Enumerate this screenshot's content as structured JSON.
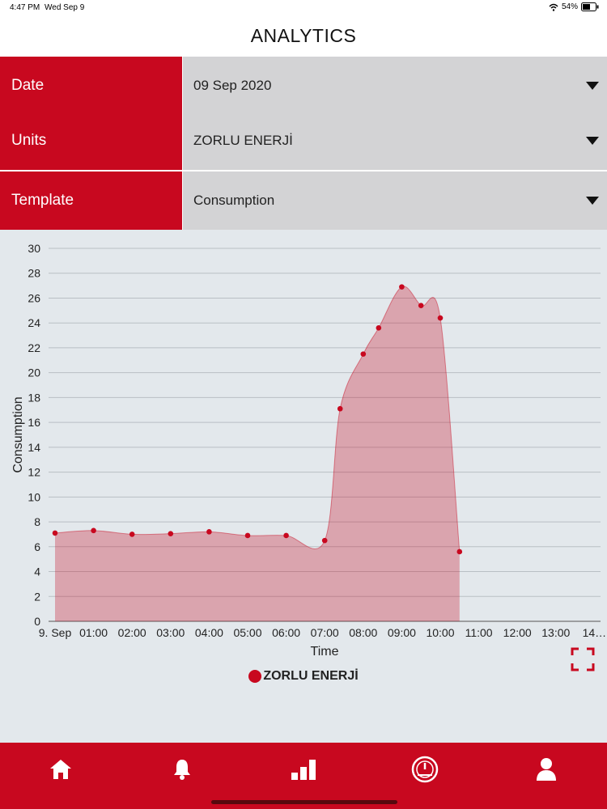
{
  "status_bar": {
    "time": "4:47 PM",
    "date": "Wed Sep 9",
    "battery": "54%"
  },
  "header": {
    "title": "ANALYTICS"
  },
  "filters": [
    {
      "label": "Date",
      "value": "09 Sep 2020"
    },
    {
      "label": "Units",
      "value": "ZORLU ENERJİ"
    },
    {
      "label": "Template",
      "value": "Consumption"
    }
  ],
  "chart_data": {
    "type": "area",
    "xlabel": "Time",
    "ylabel": "Consumption",
    "ylim": [
      0,
      30
    ],
    "yticks": [
      0,
      2,
      4,
      6,
      8,
      10,
      12,
      14,
      16,
      18,
      20,
      22,
      24,
      26,
      28,
      30
    ],
    "x_tick_labels": [
      "9. Sep",
      "01:00",
      "02:00",
      "03:00",
      "04:00",
      "05:00",
      "06:00",
      "07:00",
      "08:00",
      "09:00",
      "10:00",
      "11:00",
      "12:00",
      "13:00",
      "14…"
    ],
    "grid": true,
    "series": [
      {
        "name": "ZORLU ENERJİ",
        "color": "#c8081f",
        "points": [
          {
            "x": 0,
            "y": 7.1
          },
          {
            "x": 1,
            "y": 7.3
          },
          {
            "x": 2,
            "y": 7.0
          },
          {
            "x": 3,
            "y": 7.05
          },
          {
            "x": 4,
            "y": 7.2
          },
          {
            "x": 5,
            "y": 6.9
          },
          {
            "x": 6,
            "y": 6.9
          },
          {
            "x": 7,
            "y": 6.5
          },
          {
            "x": 7.4,
            "y": 17.1
          },
          {
            "x": 8,
            "y": 21.5
          },
          {
            "x": 8.4,
            "y": 23.6
          },
          {
            "x": 9,
            "y": 26.9
          },
          {
            "x": 9.5,
            "y": 25.4
          },
          {
            "x": 10,
            "y": 24.4
          },
          {
            "x": 10.5,
            "y": 5.6
          }
        ]
      }
    ]
  },
  "legend": {
    "label": "ZORLU ENERJİ",
    "color": "#c8081f"
  },
  "tabs": [
    {
      "name": "home",
      "icon": "home-icon"
    },
    {
      "name": "alerts",
      "icon": "bell-icon"
    },
    {
      "name": "analytics",
      "icon": "bar-chart-icon"
    },
    {
      "name": "dashboard",
      "icon": "gauge-icon"
    },
    {
      "name": "profile",
      "icon": "user-icon"
    }
  ]
}
